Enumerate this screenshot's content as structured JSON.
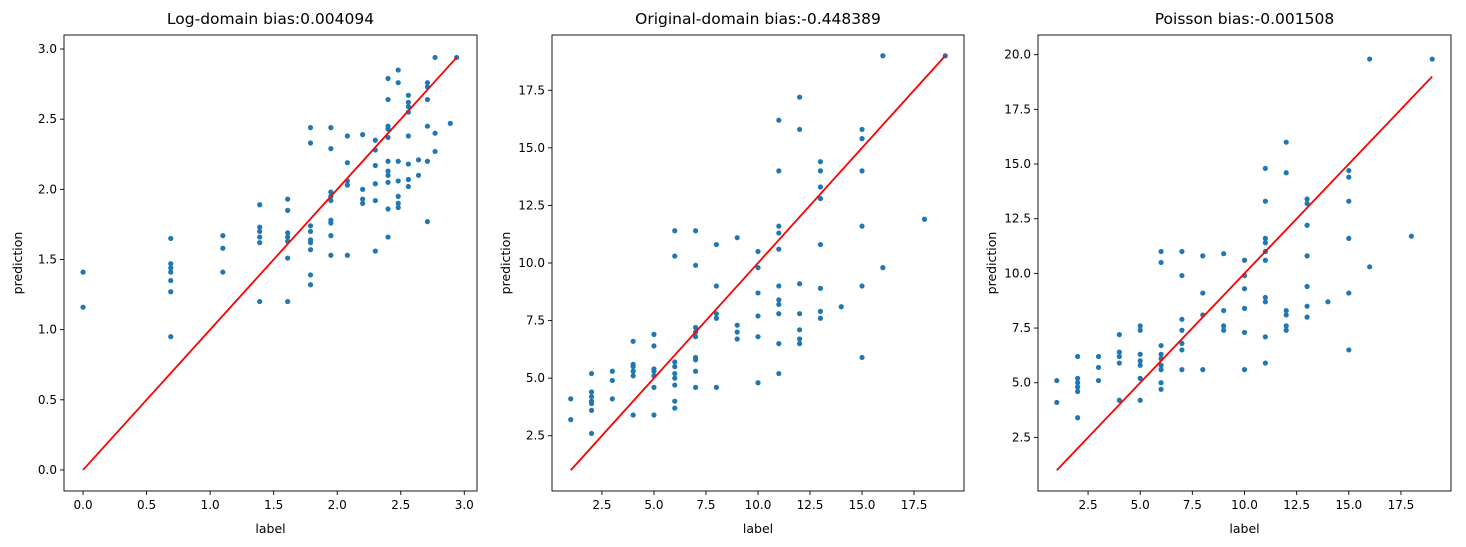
{
  "chart_data": [
    {
      "type": "scatter",
      "title": "Log-domain bias:0.004094",
      "xlabel": "label",
      "ylabel": "prediction",
      "xlim": [
        -0.15,
        3.1
      ],
      "ylim": [
        -0.15,
        3.1
      ],
      "xticks": [
        0.0,
        0.5,
        1.0,
        1.5,
        2.0,
        2.5,
        3.0
      ],
      "yticks": [
        0.0,
        0.5,
        1.0,
        1.5,
        2.0,
        2.5,
        3.0
      ],
      "tick_labels_x": [
        "0.0",
        "0.5",
        "1.0",
        "1.5",
        "2.0",
        "2.5",
        "3.0"
      ],
      "tick_labels_y": [
        "0.0",
        "0.5",
        "1.0",
        "1.5",
        "2.0",
        "2.5",
        "3.0"
      ],
      "reference_line": [
        [
          0.0,
          0.0
        ],
        [
          2.94,
          2.94
        ]
      ],
      "point_color": "#1f77b4",
      "line_color": "#ff0000",
      "grid": false,
      "points": [
        [
          0.0,
          1.41
        ],
        [
          0.0,
          1.16
        ],
        [
          0.69,
          1.65
        ],
        [
          0.69,
          1.47
        ],
        [
          0.69,
          1.44
        ],
        [
          0.69,
          1.41
        ],
        [
          0.69,
          1.35
        ],
        [
          0.69,
          1.27
        ],
        [
          0.69,
          0.95
        ],
        [
          1.1,
          1.67
        ],
        [
          1.1,
          1.58
        ],
        [
          1.1,
          1.41
        ],
        [
          1.39,
          1.89
        ],
        [
          1.39,
          1.73
        ],
        [
          1.39,
          1.7
        ],
        [
          1.39,
          1.66
        ],
        [
          1.39,
          1.62
        ],
        [
          1.39,
          1.2
        ],
        [
          1.61,
          1.93
        ],
        [
          1.61,
          1.85
        ],
        [
          1.61,
          1.69
        ],
        [
          1.61,
          1.66
        ],
        [
          1.61,
          1.63
        ],
        [
          1.61,
          1.51
        ],
        [
          1.61,
          1.2
        ],
        [
          1.79,
          2.44
        ],
        [
          1.79,
          2.33
        ],
        [
          1.79,
          1.74
        ],
        [
          1.79,
          1.7
        ],
        [
          1.79,
          1.64
        ],
        [
          1.79,
          1.62
        ],
        [
          1.79,
          1.57
        ],
        [
          1.79,
          1.39
        ],
        [
          1.79,
          1.32
        ],
        [
          1.95,
          2.44
        ],
        [
          1.95,
          2.29
        ],
        [
          1.95,
          1.98
        ],
        [
          1.95,
          1.95
        ],
        [
          1.95,
          1.92
        ],
        [
          1.95,
          1.78
        ],
        [
          1.95,
          1.76
        ],
        [
          1.95,
          1.67
        ],
        [
          1.95,
          1.53
        ],
        [
          2.08,
          2.38
        ],
        [
          2.08,
          2.19
        ],
        [
          2.08,
          2.06
        ],
        [
          2.08,
          2.03
        ],
        [
          2.08,
          1.53
        ],
        [
          2.2,
          2.39
        ],
        [
          2.2,
          2.0
        ],
        [
          2.2,
          1.93
        ],
        [
          2.2,
          1.9
        ],
        [
          2.3,
          2.35
        ],
        [
          2.3,
          2.28
        ],
        [
          2.3,
          2.17
        ],
        [
          2.3,
          2.04
        ],
        [
          2.3,
          1.92
        ],
        [
          2.3,
          1.56
        ],
        [
          2.4,
          2.79
        ],
        [
          2.4,
          2.64
        ],
        [
          2.4,
          2.45
        ],
        [
          2.4,
          2.43
        ],
        [
          2.4,
          2.37
        ],
        [
          2.4,
          2.2
        ],
        [
          2.4,
          2.13
        ],
        [
          2.4,
          2.1
        ],
        [
          2.4,
          2.05
        ],
        [
          2.4,
          1.86
        ],
        [
          2.4,
          1.66
        ],
        [
          2.48,
          2.85
        ],
        [
          2.48,
          2.76
        ],
        [
          2.48,
          2.2
        ],
        [
          2.48,
          2.06
        ],
        [
          2.48,
          1.95
        ],
        [
          2.48,
          1.9
        ],
        [
          2.48,
          1.87
        ],
        [
          2.56,
          2.67
        ],
        [
          2.56,
          2.62
        ],
        [
          2.56,
          2.59
        ],
        [
          2.56,
          2.55
        ],
        [
          2.56,
          2.38
        ],
        [
          2.56,
          2.18
        ],
        [
          2.56,
          2.07
        ],
        [
          2.56,
          2.02
        ],
        [
          2.64,
          2.21
        ],
        [
          2.64,
          2.1
        ],
        [
          2.71,
          2.76
        ],
        [
          2.71,
          2.73
        ],
        [
          2.71,
          2.64
        ],
        [
          2.71,
          2.45
        ],
        [
          2.71,
          2.2
        ],
        [
          2.71,
          1.77
        ],
        [
          2.77,
          2.94
        ],
        [
          2.77,
          2.4
        ],
        [
          2.77,
          2.27
        ],
        [
          2.89,
          2.47
        ],
        [
          2.94,
          2.94
        ]
      ]
    },
    {
      "type": "scatter",
      "title": "Original-domain bias:-0.448389",
      "xlabel": "label",
      "ylabel": "prediction",
      "xlim": [
        0.1,
        19.9
      ],
      "ylim": [
        0.1,
        19.9
      ],
      "xticks": [
        2.5,
        5.0,
        7.5,
        10.0,
        12.5,
        15.0,
        17.5
      ],
      "yticks": [
        2.5,
        5.0,
        7.5,
        10.0,
        12.5,
        15.0,
        17.5
      ],
      "tick_labels_x": [
        "2.5",
        "5.0",
        "7.5",
        "10.0",
        "12.5",
        "15.0",
        "17.5"
      ],
      "tick_labels_y": [
        "2.5",
        "5.0",
        "7.5",
        "10.0",
        "12.5",
        "15.0",
        "17.5"
      ],
      "reference_line": [
        [
          1,
          1
        ],
        [
          19,
          19
        ]
      ],
      "point_color": "#1f77b4",
      "line_color": "#ff0000",
      "grid": false,
      "points": [
        [
          1,
          4.1
        ],
        [
          1,
          3.2
        ],
        [
          2,
          5.2
        ],
        [
          2,
          4.4
        ],
        [
          2,
          4.2
        ],
        [
          2,
          4.0
        ],
        [
          2,
          3.9
        ],
        [
          2,
          3.6
        ],
        [
          2,
          2.6
        ],
        [
          3,
          5.3
        ],
        [
          3,
          4.9
        ],
        [
          3,
          4.1
        ],
        [
          4,
          6.6
        ],
        [
          4,
          5.6
        ],
        [
          4,
          5.5
        ],
        [
          4,
          5.3
        ],
        [
          4,
          5.1
        ],
        [
          4,
          3.4
        ],
        [
          5,
          6.9
        ],
        [
          5,
          6.4
        ],
        [
          5,
          5.4
        ],
        [
          5,
          5.3
        ],
        [
          5,
          5.1
        ],
        [
          5,
          4.6
        ],
        [
          5,
          3.4
        ],
        [
          6,
          11.4
        ],
        [
          6,
          10.3
        ],
        [
          6,
          5.7
        ],
        [
          6,
          5.5
        ],
        [
          6,
          5.2
        ],
        [
          6,
          5.0
        ],
        [
          6,
          4.7
        ],
        [
          6,
          4.0
        ],
        [
          6,
          3.7
        ],
        [
          7,
          11.4
        ],
        [
          7,
          9.9
        ],
        [
          7,
          7.2
        ],
        [
          7,
          7.0
        ],
        [
          7,
          6.8
        ],
        [
          7,
          5.9
        ],
        [
          7,
          5.8
        ],
        [
          7,
          5.3
        ],
        [
          7,
          4.6
        ],
        [
          8,
          10.8
        ],
        [
          8,
          9.0
        ],
        [
          8,
          7.8
        ],
        [
          8,
          7.6
        ],
        [
          8,
          4.6
        ],
        [
          9,
          11.1
        ],
        [
          9,
          7.3
        ],
        [
          9,
          7.0
        ],
        [
          9,
          6.7
        ],
        [
          10,
          10.5
        ],
        [
          10,
          9.8
        ],
        [
          10,
          8.7
        ],
        [
          10,
          7.7
        ],
        [
          10,
          6.8
        ],
        [
          10,
          4.8
        ],
        [
          11,
          16.2
        ],
        [
          11,
          14.0
        ],
        [
          11,
          11.6
        ],
        [
          11,
          11.3
        ],
        [
          11,
          10.6
        ],
        [
          11,
          9.0
        ],
        [
          11,
          8.4
        ],
        [
          11,
          8.2
        ],
        [
          11,
          7.8
        ],
        [
          11,
          6.5
        ],
        [
          11,
          5.2
        ],
        [
          12,
          17.2
        ],
        [
          12,
          15.8
        ],
        [
          12,
          9.1
        ],
        [
          12,
          7.8
        ],
        [
          12,
          7.1
        ],
        [
          12,
          6.7
        ],
        [
          12,
          6.5
        ],
        [
          13,
          14.4
        ],
        [
          13,
          14.0
        ],
        [
          13,
          13.3
        ],
        [
          13,
          12.8
        ],
        [
          13,
          10.8
        ],
        [
          13,
          8.9
        ],
        [
          13,
          7.9
        ],
        [
          13,
          7.6
        ],
        [
          14,
          8.1
        ],
        [
          15,
          15.8
        ],
        [
          15,
          15.4
        ],
        [
          15,
          14.0
        ],
        [
          15,
          11.6
        ],
        [
          15,
          9.0
        ],
        [
          15,
          5.9
        ],
        [
          16,
          19.0
        ],
        [
          16,
          9.8
        ],
        [
          18,
          11.9
        ],
        [
          19,
          19.0
        ]
      ]
    },
    {
      "type": "scatter",
      "title": "Poisson bias:-0.001508",
      "xlabel": "label",
      "ylabel": "prediction",
      "xlim": [
        0.1,
        19.9
      ],
      "ylim": [
        0.05,
        20.9
      ],
      "xticks": [
        2.5,
        5.0,
        7.5,
        10.0,
        12.5,
        15.0,
        17.5
      ],
      "yticks": [
        2.5,
        5.0,
        7.5,
        10.0,
        12.5,
        15.0,
        17.5,
        20.0
      ],
      "tick_labels_x": [
        "2.5",
        "5.0",
        "7.5",
        "10.0",
        "12.5",
        "15.0",
        "17.5"
      ],
      "tick_labels_y": [
        "2.5",
        "5.0",
        "7.5",
        "10.0",
        "12.5",
        "15.0",
        "17.5",
        "20.0"
      ],
      "reference_line": [
        [
          1,
          1
        ],
        [
          19,
          19
        ]
      ],
      "point_color": "#1f77b4",
      "line_color": "#ff0000",
      "grid": false,
      "points": [
        [
          1,
          5.1
        ],
        [
          1,
          4.1
        ],
        [
          2,
          6.2
        ],
        [
          2,
          5.2
        ],
        [
          2,
          5.0
        ],
        [
          2,
          4.8
        ],
        [
          2,
          4.6
        ],
        [
          2,
          3.4
        ],
        [
          3,
          6.2
        ],
        [
          3,
          5.7
        ],
        [
          3,
          5.1
        ],
        [
          4,
          7.2
        ],
        [
          4,
          6.4
        ],
        [
          4,
          6.2
        ],
        [
          4,
          5.9
        ],
        [
          4,
          4.2
        ],
        [
          5,
          7.6
        ],
        [
          5,
          7.4
        ],
        [
          5,
          6.3
        ],
        [
          5,
          6.0
        ],
        [
          5,
          5.8
        ],
        [
          5,
          5.2
        ],
        [
          5,
          4.2
        ],
        [
          6,
          11.0
        ],
        [
          6,
          10.5
        ],
        [
          6,
          6.7
        ],
        [
          6,
          6.3
        ],
        [
          6,
          6.1
        ],
        [
          6,
          5.8
        ],
        [
          6,
          5.6
        ],
        [
          6,
          5.0
        ],
        [
          6,
          4.7
        ],
        [
          7,
          11.0
        ],
        [
          7,
          9.9
        ],
        [
          7,
          7.9
        ],
        [
          7,
          7.4
        ],
        [
          7,
          6.8
        ],
        [
          7,
          6.5
        ],
        [
          7,
          5.6
        ],
        [
          8,
          10.8
        ],
        [
          8,
          9.1
        ],
        [
          8,
          8.1
        ],
        [
          8,
          5.6
        ],
        [
          9,
          10.9
        ],
        [
          9,
          8.3
        ],
        [
          9,
          7.6
        ],
        [
          9,
          7.4
        ],
        [
          10,
          10.6
        ],
        [
          10,
          9.9
        ],
        [
          10,
          9.3
        ],
        [
          10,
          8.4
        ],
        [
          10,
          7.3
        ],
        [
          10,
          5.6
        ],
        [
          11,
          14.8
        ],
        [
          11,
          13.3
        ],
        [
          11,
          11.6
        ],
        [
          11,
          11.4
        ],
        [
          11,
          11.0
        ],
        [
          11,
          10.6
        ],
        [
          11,
          8.9
        ],
        [
          11,
          8.7
        ],
        [
          11,
          7.1
        ],
        [
          11,
          5.9
        ],
        [
          12,
          16.0
        ],
        [
          12,
          14.6
        ],
        [
          12,
          8.3
        ],
        [
          12,
          8.1
        ],
        [
          12,
          7.6
        ],
        [
          12,
          7.4
        ],
        [
          13,
          13.4
        ],
        [
          13,
          13.2
        ],
        [
          13,
          12.2
        ],
        [
          13,
          10.8
        ],
        [
          13,
          9.4
        ],
        [
          13,
          8.5
        ],
        [
          13,
          8.0
        ],
        [
          14,
          8.7
        ],
        [
          15,
          14.7
        ],
        [
          15,
          14.4
        ],
        [
          15,
          13.3
        ],
        [
          15,
          11.6
        ],
        [
          15,
          9.1
        ],
        [
          15,
          6.5
        ],
        [
          16,
          19.8
        ],
        [
          16,
          10.3
        ],
        [
          18,
          11.7
        ],
        [
          19,
          19.8
        ]
      ]
    }
  ]
}
